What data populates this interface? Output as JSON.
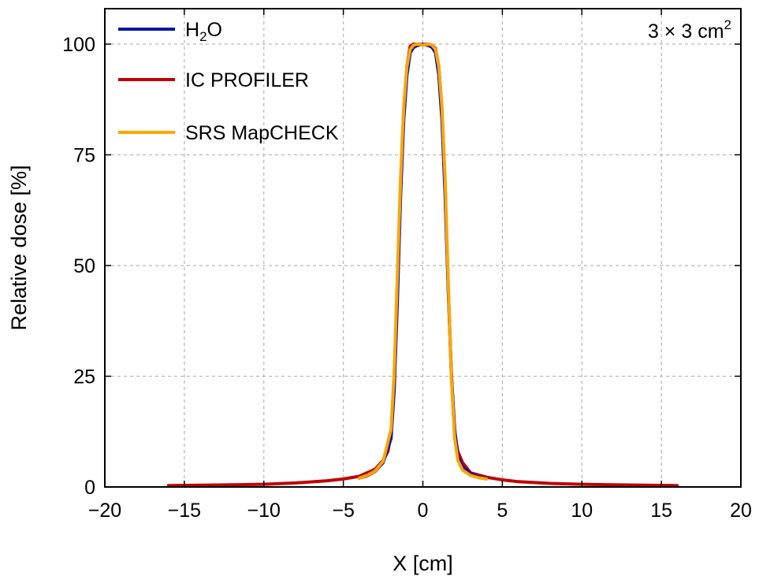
{
  "chart_data": {
    "type": "line",
    "title": "",
    "annotation": {
      "text": "3 × 3 cm",
      "sup": "2"
    },
    "xlabel": "X [cm]",
    "ylabel": "Relative dose [%]",
    "xlim": [
      -20,
      20
    ],
    "ylim": [
      0,
      108
    ],
    "xticks": [
      -20,
      -15,
      -10,
      -5,
      0,
      5,
      10,
      15,
      20
    ],
    "xtick_labels": [
      "−20",
      "−15",
      "−10",
      "−5",
      "0",
      "5",
      "10",
      "15",
      "20"
    ],
    "yticks": [
      0,
      25,
      50,
      75,
      100
    ],
    "ytick_labels": [
      "0",
      "25",
      "50",
      "75",
      "100"
    ],
    "grid": true,
    "legend_position": "top-left",
    "series": [
      {
        "name": "IC PROFILER",
        "color": "#c00000",
        "x": [
          -16,
          -14,
          -12,
          -10,
          -8,
          -6,
          -5,
          -4,
          -3,
          -2.5,
          -2.2,
          -2,
          -1.8,
          -1.6,
          -1.4,
          -1.2,
          -1,
          -0.8,
          -0.6,
          -0.4,
          -0.2,
          0,
          0.2,
          0.4,
          0.6,
          0.8,
          1,
          1.2,
          1.4,
          1.6,
          1.8,
          2,
          2.2,
          2.5,
          3,
          4,
          5,
          6,
          8,
          10,
          12,
          14,
          16
        ],
        "y": [
          0.3,
          0.4,
          0.5,
          0.6,
          0.9,
          1.4,
          1.8,
          2.4,
          4,
          6,
          8,
          12,
          25,
          45,
          68,
          85,
          95,
          99.5,
          100,
          100,
          100,
          99.8,
          100,
          100,
          99.7,
          99,
          95,
          85,
          68,
          45,
          25,
          12,
          8,
          5.5,
          3.2,
          2.2,
          1.6,
          1.2,
          0.8,
          0.6,
          0.5,
          0.4,
          0.3
        ]
      },
      {
        "name": "H₂O",
        "color": "#0a14a8",
        "x": [
          -4,
          -3.5,
          -3,
          -2.5,
          -2,
          -1.8,
          -1.6,
          -1.4,
          -1.2,
          -1,
          -0.8,
          -0.6,
          -0.4,
          -0.2,
          0,
          0.2,
          0.4,
          0.6,
          0.8,
          1,
          1.2,
          1.4,
          1.6,
          1.8,
          2,
          2.2,
          2.5,
          3,
          3.5,
          4
        ],
        "y": [
          2,
          2.5,
          3.5,
          5.5,
          11,
          22,
          42,
          66,
          83,
          93,
          98,
          99.2,
          99.6,
          99.8,
          100,
          99.8,
          99.6,
          99.2,
          98,
          93,
          83,
          66,
          44,
          25,
          13,
          7,
          4.5,
          3,
          2.3,
          1.9
        ]
      },
      {
        "name": "SRS MapCHECK",
        "color": "#ffa500",
        "x": [
          -4,
          -3.5,
          -3,
          -2.5,
          -2,
          -1.8,
          -1.6,
          -1.4,
          -1.2,
          -1,
          -0.8,
          -0.6,
          -0.4,
          -0.2,
          0,
          0.2,
          0.4,
          0.6,
          0.8,
          1,
          1.2,
          1.4,
          1.6,
          1.8,
          2,
          2.2,
          2.5,
          3,
          3.5,
          4
        ],
        "y": [
          2,
          2.6,
          3.6,
          5.8,
          13,
          26,
          48,
          70,
          86,
          95,
          98.8,
          99.7,
          100,
          99.9,
          99.7,
          99.9,
          100,
          99.7,
          98.8,
          95,
          86,
          70,
          46,
          24,
          11,
          6,
          3.8,
          2.6,
          2.1,
          1.8
        ]
      }
    ],
    "legend": [
      {
        "label": "H",
        "sub": "2",
        "tail": "O",
        "color": "#0a14a8"
      },
      {
        "label": "IC PROFILER",
        "color": "#c00000"
      },
      {
        "label": "SRS MapCHECK",
        "color": "#ffa500"
      }
    ]
  }
}
